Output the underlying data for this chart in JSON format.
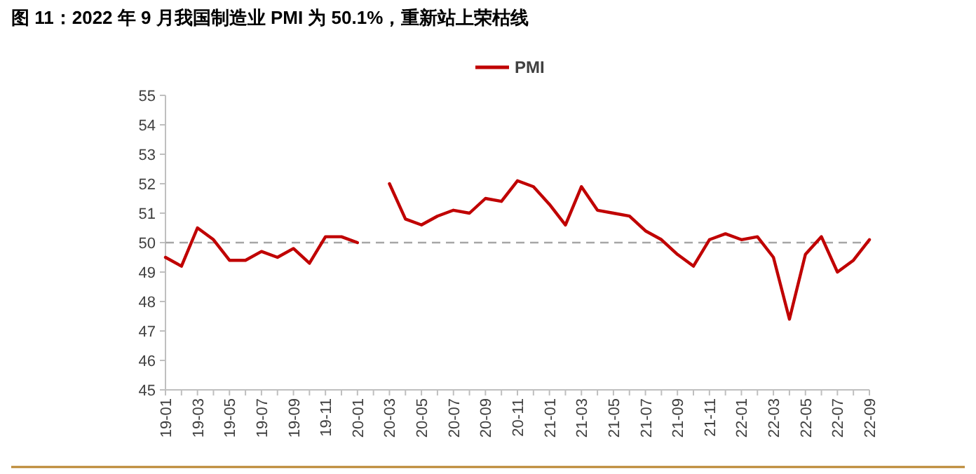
{
  "chart_data": {
    "type": "line",
    "title": "图 11：2022 年 9 月我国制造业 PMI 为 50.1%，重新站上荣枯线",
    "categories": [
      "19-01",
      null,
      "19-03",
      null,
      "19-05",
      null,
      "19-07",
      null,
      "19-09",
      null,
      "19-11",
      null,
      "20-01",
      null,
      "20-03",
      null,
      "20-05",
      null,
      "20-07",
      null,
      "20-09",
      null,
      "20-11",
      null,
      "21-01",
      null,
      "21-03",
      null,
      "21-05",
      null,
      "21-07",
      null,
      "21-09",
      null,
      "21-11",
      null,
      "22-01",
      null,
      "22-03",
      null,
      "22-05",
      null,
      "22-07",
      null,
      "22-09"
    ],
    "series": [
      {
        "name": "PMI",
        "color": "#c00000",
        "values": [
          49.5,
          49.2,
          50.5,
          50.1,
          49.4,
          49.4,
          49.7,
          49.5,
          49.8,
          49.3,
          50.2,
          50.2,
          50.0,
          null,
          52.0,
          50.8,
          50.6,
          50.9,
          51.1,
          51.0,
          51.5,
          51.4,
          52.1,
          51.9,
          51.3,
          50.6,
          51.9,
          51.1,
          51.0,
          50.9,
          50.4,
          50.1,
          49.6,
          49.2,
          50.1,
          50.3,
          50.1,
          50.2,
          49.5,
          47.4,
          49.6,
          50.2,
          49.0,
          49.4,
          50.1
        ]
      }
    ],
    "ylim": [
      45,
      55
    ],
    "yticks": [
      45,
      46,
      47,
      48,
      49,
      50,
      51,
      52,
      53,
      54,
      55
    ],
    "ref_lines": [
      {
        "axis": "y",
        "value": 50,
        "color": "#a6a6a6",
        "line_style": "dashed"
      }
    ],
    "legend": "top",
    "grid": false,
    "line_style": "solid"
  }
}
